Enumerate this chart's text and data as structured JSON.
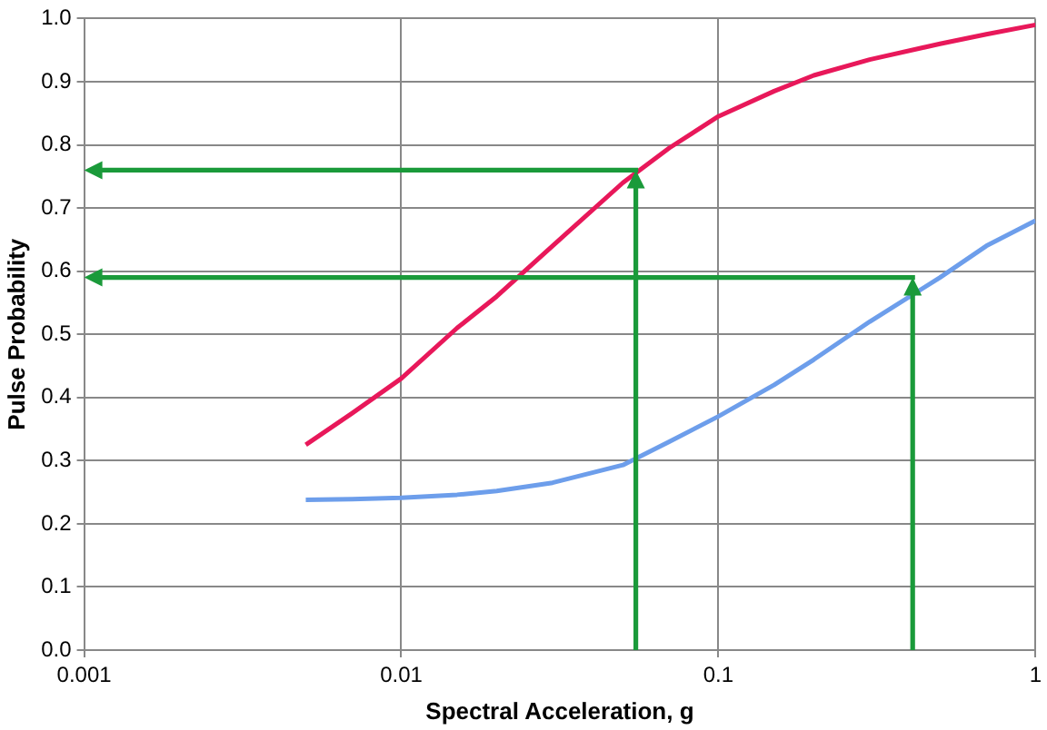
{
  "chart_data": {
    "type": "line",
    "xlabel": "Spectral Acceleration, g",
    "ylabel": "Pulse Probability",
    "log": "x",
    "grid": true,
    "marker": "none",
    "legend": false,
    "x": [
      0.005,
      0.007,
      0.01,
      0.015,
      0.02,
      0.03,
      0.05,
      0.07,
      0.1,
      0.15,
      0.2,
      0.3,
      0.5,
      0.7,
      1
    ],
    "xlim": [
      0.001,
      1
    ],
    "xticks": [
      0.001,
      0.01,
      0.1,
      1
    ],
    "ylim": [
      0,
      1
    ],
    "yticks": [
      {
        "value": 0,
        "label": "0.0"
      },
      {
        "value": 0.1,
        "label": "0.1"
      },
      {
        "value": 0.2,
        "label": "0.2"
      },
      {
        "value": 0.3,
        "label": "0.3"
      },
      {
        "value": 0.4,
        "label": "0.4"
      },
      {
        "value": 0.5,
        "label": "0.5"
      },
      {
        "value": 0.6,
        "label": "0.6"
      },
      {
        "value": 0.7,
        "label": "0.7"
      },
      {
        "value": 0.8,
        "label": "0.8"
      },
      {
        "value": 0.9,
        "label": "0.9"
      },
      {
        "value": 1,
        "label": "1.0"
      }
    ],
    "series": [
      {
        "color": "#e8185a",
        "values": [
          0.325,
          0.375,
          0.43,
          0.51,
          0.56,
          0.64,
          0.74,
          0.795,
          0.845,
          0.885,
          0.91,
          0.935,
          0.96,
          0.975,
          0.99
        ]
      },
      {
        "color": "#6d9eeb",
        "values": [
          0.238,
          0.239,
          0.241,
          0.246,
          0.252,
          0.265,
          0.293,
          0.33,
          0.37,
          0.42,
          0.46,
          0.52,
          0.59,
          0.64,
          0.68
        ]
      }
    ]
  }
}
